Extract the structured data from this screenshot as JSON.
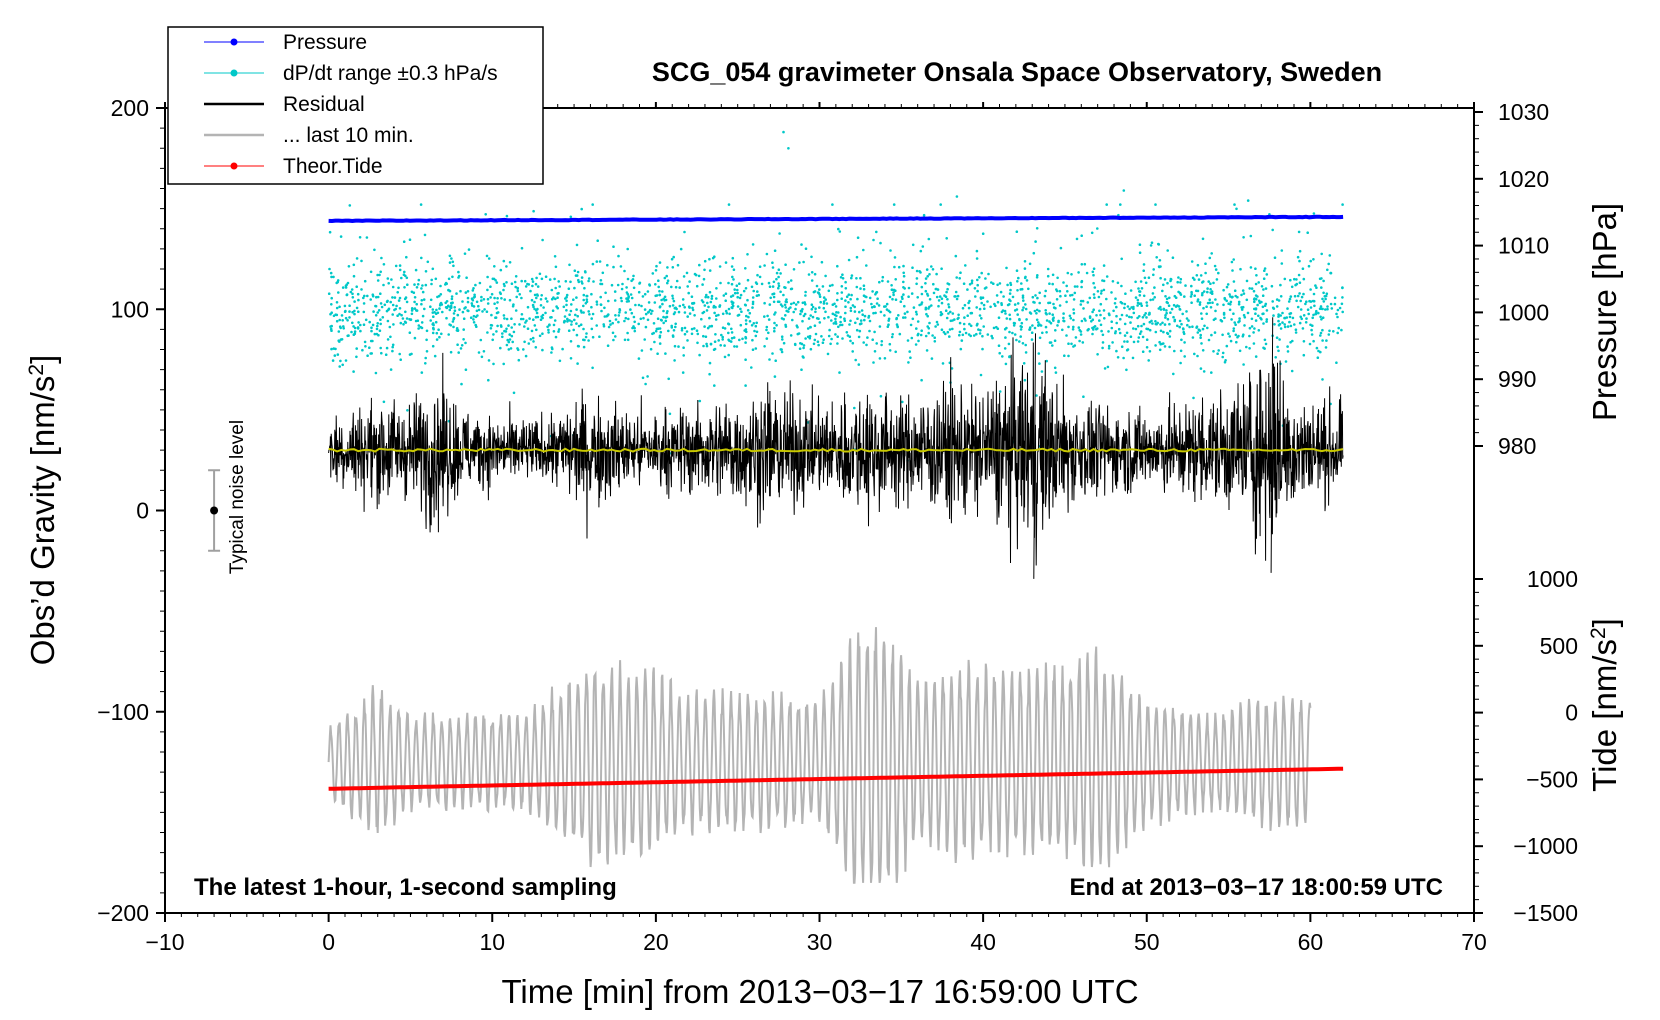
{
  "chart_data": {
    "type": "line",
    "title": "SCG_054 gravimeter Onsala Space Observatory, Sweden",
    "xlabel": "Time [min] from 2013−03−17 16:59:00 UTC",
    "ylabel_left": "Obs’d Gravity [nm/s",
    "ylabel_left_sup": "2",
    "ylabel_left_end": "]",
    "ylabel_right_top": "Pressure [hPa]",
    "ylabel_right_bottom": "Tide [nm/s",
    "ylabel_right_bottom_sup": "2",
    "ylabel_right_bottom_end": "]",
    "xlim": [
      -10,
      70
    ],
    "ylim_left": [
      -200,
      200
    ],
    "pressure_axis": [
      980,
      1030
    ],
    "tide_axis": [
      -1500,
      1000
    ],
    "x_ticks": [
      "−10",
      "0",
      "10",
      "20",
      "30",
      "40",
      "50",
      "60",
      "70"
    ],
    "y_left_ticks": [
      "−200",
      "−100",
      "0",
      "100",
      "200"
    ],
    "pressure_ticks": [
      "980",
      "990",
      "1000",
      "1010",
      "1020",
      "1030"
    ],
    "tide_ticks": [
      "−1500",
      "−1000",
      "−500",
      "0",
      "500",
      "1000"
    ],
    "annotations": {
      "bottom_left": "The latest 1-hour, 1-second sampling",
      "bottom_right": "End at 2013−03−17 18:00:59 UTC",
      "noise_label": "Typical noise level"
    },
    "noise_bar": {
      "x": -7,
      "center": 0,
      "half_range": 20
    },
    "legend": [
      {
        "label": "Pressure",
        "color": "#0000ff",
        "style": "line-dot"
      },
      {
        "label": "dP/dt range ±0.3 hPa/s",
        "color": "#00c8c8",
        "style": "line-dot"
      },
      {
        "label": "Residual",
        "color": "#000000",
        "style": "line"
      },
      {
        "label": "... last 10 min.",
        "color": "#b4b4b4",
        "style": "line"
      },
      {
        "label": "Theor.Tide",
        "color": "#ff0000",
        "style": "line-dot"
      }
    ],
    "series": [
      {
        "name": "Pressure",
        "axis": "pressure",
        "x_range": [
          0,
          62
        ],
        "start": 1013.7,
        "end": 1014.3
      },
      {
        "name": "dP/dt range",
        "axis": "left",
        "x_range": [
          0,
          62
        ],
        "center": 100,
        "spread": 12,
        "outlier_max": 188
      },
      {
        "name": "Residual",
        "axis": "left",
        "x_range": [
          0,
          62
        ],
        "baseline": 30,
        "min": -34,
        "max": 96
      },
      {
        "name": "Residual mean",
        "axis": "left",
        "x_range": [
          0,
          62
        ],
        "value": 30,
        "color": "#c8c800"
      },
      {
        "name": "... last 10 min.",
        "axis": "left",
        "x_range": [
          0,
          60
        ],
        "center": -125,
        "max": -58,
        "min": -185
      },
      {
        "name": "Theor.Tide",
        "axis": "tide",
        "x_range": [
          0,
          62
        ],
        "start": -570,
        "end": -420
      }
    ]
  }
}
